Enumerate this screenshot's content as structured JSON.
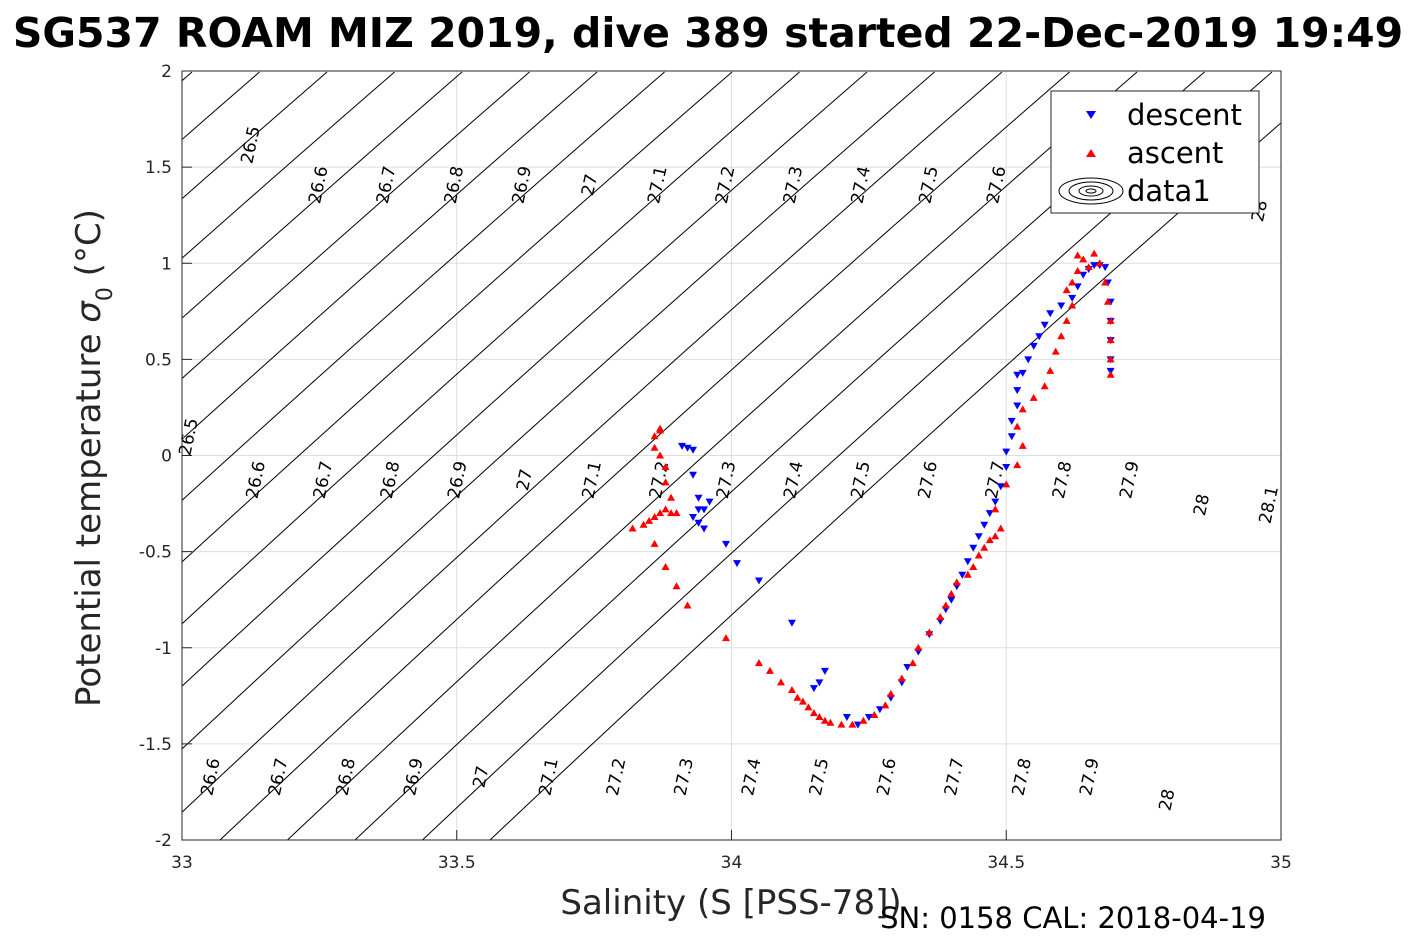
{
  "chart_data": {
    "type": "scatter",
    "title": "SG537 ROAM MIZ 2019, dive 389 started 22-Dec-2019 19:49",
    "xlabel": "Salinity (S [PSS-78])",
    "ylabel": "Potential temperature σ₀ (°C)",
    "xlim": [
      33,
      35
    ],
    "ylim": [
      -2,
      2
    ],
    "xticks": [
      "33",
      "33.5",
      "34",
      "34.5",
      "35"
    ],
    "yticks": [
      "-2",
      "-1.5",
      "-1",
      "-0.5",
      "0",
      "0.5",
      "1",
      "1.5",
      "2"
    ],
    "grid": true,
    "legend_position": "top-right",
    "legend": [
      "descent",
      "ascent",
      "data1"
    ],
    "footer": "SN: 0158  CAL: 2018-04-19",
    "series": [
      {
        "name": "descent",
        "marker": "triangle-down",
        "color": "#0000ff",
        "points": [
          [
            33.91,
            0.05
          ],
          [
            33.92,
            0.04
          ],
          [
            33.93,
            0.03
          ],
          [
            33.93,
            -0.1
          ],
          [
            33.94,
            -0.22
          ],
          [
            33.94,
            -0.28
          ],
          [
            33.93,
            -0.32
          ],
          [
            33.94,
            -0.35
          ],
          [
            33.95,
            -0.28
          ],
          [
            33.96,
            -0.24
          ],
          [
            33.95,
            -0.38
          ],
          [
            33.99,
            -0.46
          ],
          [
            34.01,
            -0.56
          ],
          [
            34.05,
            -0.65
          ],
          [
            34.11,
            -0.87
          ],
          [
            34.17,
            -1.12
          ],
          [
            34.16,
            -1.18
          ],
          [
            34.15,
            -1.21
          ],
          [
            34.21,
            -1.36
          ],
          [
            34.23,
            -1.4
          ],
          [
            34.25,
            -1.36
          ],
          [
            34.27,
            -1.32
          ],
          [
            34.29,
            -1.26
          ],
          [
            34.31,
            -1.18
          ],
          [
            34.32,
            -1.1
          ],
          [
            34.34,
            -1.02
          ],
          [
            34.36,
            -0.93
          ],
          [
            34.38,
            -0.86
          ],
          [
            34.39,
            -0.8
          ],
          [
            34.4,
            -0.75
          ],
          [
            34.41,
            -0.68
          ],
          [
            34.42,
            -0.62
          ],
          [
            34.43,
            -0.55
          ],
          [
            34.44,
            -0.48
          ],
          [
            34.45,
            -0.42
          ],
          [
            34.46,
            -0.36
          ],
          [
            34.47,
            -0.3
          ],
          [
            34.48,
            -0.24
          ],
          [
            34.49,
            -0.16
          ],
          [
            34.5,
            -0.06
          ],
          [
            34.5,
            0.02
          ],
          [
            34.51,
            0.1
          ],
          [
            34.51,
            0.18
          ],
          [
            34.52,
            0.26
          ],
          [
            34.52,
            0.34
          ],
          [
            34.52,
            0.42
          ],
          [
            34.53,
            0.43
          ],
          [
            34.54,
            0.5
          ],
          [
            34.55,
            0.57
          ],
          [
            34.56,
            0.62
          ],
          [
            34.57,
            0.68
          ],
          [
            34.58,
            0.74
          ],
          [
            34.6,
            0.78
          ],
          [
            34.62,
            0.82
          ],
          [
            34.63,
            0.88
          ],
          [
            34.64,
            0.94
          ],
          [
            34.65,
            0.97
          ],
          [
            34.66,
            0.99
          ],
          [
            34.67,
            0.99
          ],
          [
            34.68,
            0.98
          ],
          [
            34.685,
            0.9
          ],
          [
            34.69,
            0.8
          ],
          [
            34.69,
            0.7
          ],
          [
            34.69,
            0.6
          ],
          [
            34.69,
            0.5
          ],
          [
            34.69,
            0.44
          ]
        ]
      },
      {
        "name": "ascent",
        "marker": "triangle-up",
        "color": "#ff0000",
        "points": [
          [
            33.82,
            -0.38
          ],
          [
            33.84,
            -0.36
          ],
          [
            33.85,
            -0.34
          ],
          [
            33.86,
            -0.32
          ],
          [
            33.87,
            -0.3
          ],
          [
            33.88,
            -0.28
          ],
          [
            33.89,
            -0.3
          ],
          [
            33.9,
            -0.3
          ],
          [
            33.89,
            -0.22
          ],
          [
            33.88,
            -0.14
          ],
          [
            33.88,
            -0.06
          ],
          [
            33.87,
            0.0
          ],
          [
            33.86,
            0.04
          ],
          [
            33.86,
            0.1
          ],
          [
            33.87,
            0.13
          ],
          [
            33.87,
            0.14
          ],
          [
            33.86,
            -0.46
          ],
          [
            33.88,
            -0.58
          ],
          [
            33.9,
            -0.68
          ],
          [
            33.92,
            -0.78
          ],
          [
            33.99,
            -0.95
          ],
          [
            34.05,
            -1.08
          ],
          [
            34.07,
            -1.12
          ],
          [
            34.09,
            -1.18
          ],
          [
            34.11,
            -1.22
          ],
          [
            34.12,
            -1.26
          ],
          [
            34.13,
            -1.28
          ],
          [
            34.14,
            -1.31
          ],
          [
            34.15,
            -1.34
          ],
          [
            34.16,
            -1.36
          ],
          [
            34.17,
            -1.38
          ],
          [
            34.18,
            -1.39
          ],
          [
            34.2,
            -1.4
          ],
          [
            34.22,
            -1.4
          ],
          [
            34.24,
            -1.38
          ],
          [
            34.26,
            -1.35
          ],
          [
            34.28,
            -1.3
          ],
          [
            34.29,
            -1.24
          ],
          [
            34.31,
            -1.16
          ],
          [
            34.33,
            -1.08
          ],
          [
            34.34,
            -1.0
          ],
          [
            34.36,
            -0.92
          ],
          [
            34.38,
            -0.84
          ],
          [
            34.39,
            -0.78
          ],
          [
            34.4,
            -0.72
          ],
          [
            34.41,
            -0.66
          ],
          [
            34.43,
            -0.62
          ],
          [
            34.44,
            -0.58
          ],
          [
            34.45,
            -0.52
          ],
          [
            34.46,
            -0.48
          ],
          [
            34.47,
            -0.44
          ],
          [
            34.48,
            -0.42
          ],
          [
            34.49,
            -0.38
          ],
          [
            34.48,
            -0.28
          ],
          [
            34.5,
            -0.15
          ],
          [
            34.52,
            -0.05
          ],
          [
            34.53,
            0.05
          ],
          [
            34.52,
            0.15
          ],
          [
            34.53,
            0.24
          ],
          [
            34.55,
            0.3
          ],
          [
            34.57,
            0.36
          ],
          [
            34.58,
            0.44
          ],
          [
            34.59,
            0.54
          ],
          [
            34.6,
            0.62
          ],
          [
            34.61,
            0.7
          ],
          [
            34.62,
            0.78
          ],
          [
            34.61,
            0.86
          ],
          [
            34.62,
            0.9
          ],
          [
            34.63,
            0.96
          ],
          [
            34.63,
            1.04
          ],
          [
            34.64,
            1.02
          ],
          [
            34.65,
            0.98
          ],
          [
            34.66,
            1.05
          ],
          [
            34.67,
            1.0
          ],
          [
            34.68,
            0.9
          ],
          [
            34.685,
            0.8
          ],
          [
            34.69,
            0.7
          ],
          [
            34.69,
            0.6
          ],
          [
            34.69,
            0.5
          ],
          [
            34.69,
            0.42
          ]
        ]
      }
    ],
    "contour_series": {
      "name": "data1",
      "left_labels": [
        "26.5",
        "26.6",
        "26.7",
        "26.8",
        "26.9",
        "27",
        "27.1",
        "27.2",
        "27.3",
        "27.4",
        "27.5",
        "27.6"
      ],
      "mid_labels": [
        "26.5",
        "26.6",
        "26.7",
        "26.8",
        "26.9",
        "27",
        "27.1",
        "27.2",
        "27.3",
        "27.4",
        "27.5",
        "27.6",
        "27.7",
        "27.8",
        "27.9",
        "28",
        "28.1"
      ],
      "bottom_labels": [
        "26.6",
        "26.7",
        "26.8",
        "26.9",
        "27",
        "27.1",
        "27.2",
        "27.3",
        "27.4",
        "27.5",
        "27.6",
        "27.7",
        "27.8",
        "27.9",
        "28"
      ],
      "corner_label": "28"
    }
  }
}
